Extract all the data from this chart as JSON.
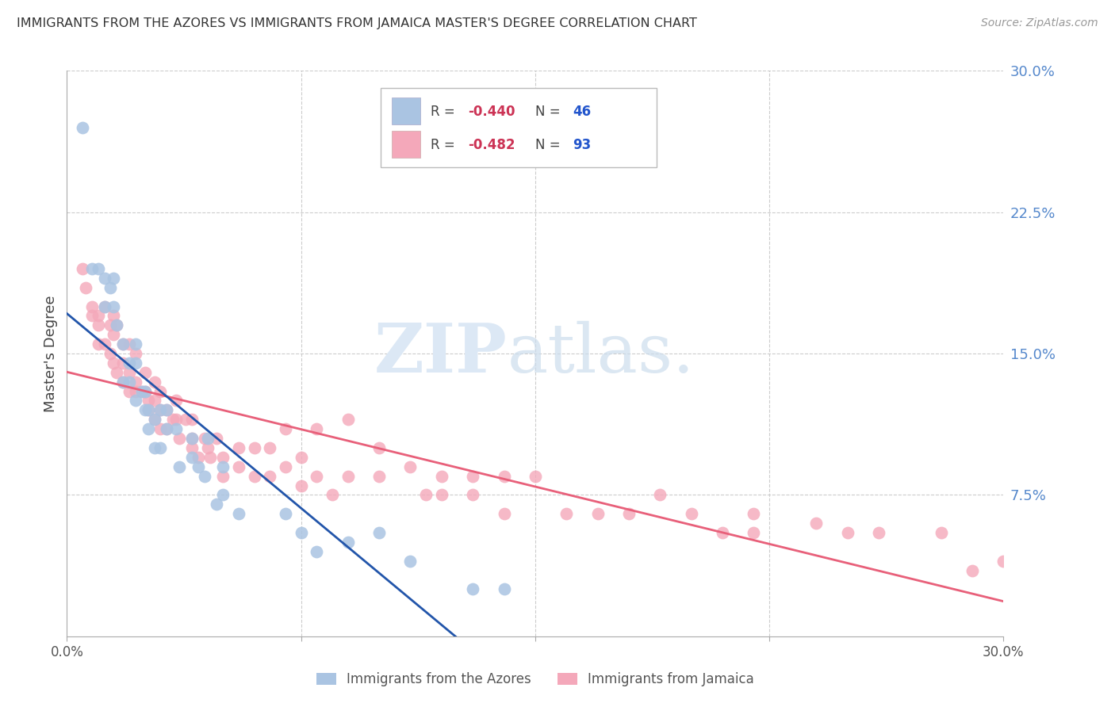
{
  "title": "IMMIGRANTS FROM THE AZORES VS IMMIGRANTS FROM JAMAICA MASTER'S DEGREE CORRELATION CHART",
  "source": "Source: ZipAtlas.com",
  "ylabel": "Master's Degree",
  "right_yticks": [
    0.0,
    0.075,
    0.15,
    0.225,
    0.3
  ],
  "right_yticklabels": [
    "",
    "7.5%",
    "15.0%",
    "22.5%",
    "30.0%"
  ],
  "xmin": 0.0,
  "xmax": 0.3,
  "ymin": 0.0,
  "ymax": 0.3,
  "color_azores": "#aac4e2",
  "color_jamaica": "#f4a8ba",
  "color_line_azores": "#2255aa",
  "color_line_jamaica": "#e8607a",
  "color_right_axis": "#5588cc",
  "color_legend_r": "#cc3355",
  "color_legend_n": "#2255cc",
  "azores_x": [
    0.005,
    0.008,
    0.01,
    0.012,
    0.012,
    0.014,
    0.015,
    0.015,
    0.016,
    0.018,
    0.018,
    0.02,
    0.02,
    0.022,
    0.022,
    0.022,
    0.024,
    0.025,
    0.025,
    0.026,
    0.026,
    0.028,
    0.028,
    0.03,
    0.03,
    0.032,
    0.032,
    0.035,
    0.036,
    0.04,
    0.04,
    0.042,
    0.044,
    0.045,
    0.048,
    0.05,
    0.05,
    0.055,
    0.07,
    0.075,
    0.08,
    0.09,
    0.1,
    0.11,
    0.13,
    0.14
  ],
  "azores_y": [
    0.27,
    0.195,
    0.195,
    0.19,
    0.175,
    0.185,
    0.19,
    0.175,
    0.165,
    0.155,
    0.135,
    0.145,
    0.135,
    0.155,
    0.145,
    0.125,
    0.13,
    0.13,
    0.12,
    0.12,
    0.11,
    0.115,
    0.1,
    0.12,
    0.1,
    0.12,
    0.11,
    0.11,
    0.09,
    0.105,
    0.095,
    0.09,
    0.085,
    0.105,
    0.07,
    0.09,
    0.075,
    0.065,
    0.065,
    0.055,
    0.045,
    0.05,
    0.055,
    0.04,
    0.025,
    0.025
  ],
  "jamaica_x": [
    0.005,
    0.006,
    0.008,
    0.008,
    0.01,
    0.01,
    0.01,
    0.012,
    0.012,
    0.014,
    0.014,
    0.015,
    0.015,
    0.015,
    0.016,
    0.016,
    0.018,
    0.018,
    0.018,
    0.02,
    0.02,
    0.02,
    0.022,
    0.022,
    0.022,
    0.024,
    0.025,
    0.025,
    0.026,
    0.026,
    0.028,
    0.028,
    0.028,
    0.03,
    0.03,
    0.03,
    0.032,
    0.032,
    0.034,
    0.035,
    0.035,
    0.036,
    0.038,
    0.04,
    0.04,
    0.04,
    0.042,
    0.044,
    0.045,
    0.046,
    0.048,
    0.05,
    0.05,
    0.055,
    0.055,
    0.06,
    0.06,
    0.065,
    0.065,
    0.07,
    0.07,
    0.075,
    0.075,
    0.08,
    0.08,
    0.085,
    0.09,
    0.09,
    0.1,
    0.1,
    0.11,
    0.115,
    0.12,
    0.12,
    0.13,
    0.13,
    0.14,
    0.14,
    0.15,
    0.16,
    0.17,
    0.18,
    0.19,
    0.2,
    0.21,
    0.22,
    0.22,
    0.24,
    0.25,
    0.26,
    0.28,
    0.29,
    0.3
  ],
  "jamaica_y": [
    0.195,
    0.185,
    0.175,
    0.17,
    0.17,
    0.165,
    0.155,
    0.175,
    0.155,
    0.165,
    0.15,
    0.17,
    0.16,
    0.145,
    0.165,
    0.14,
    0.155,
    0.145,
    0.135,
    0.155,
    0.14,
    0.13,
    0.15,
    0.135,
    0.13,
    0.13,
    0.14,
    0.13,
    0.125,
    0.12,
    0.135,
    0.125,
    0.115,
    0.13,
    0.12,
    0.11,
    0.12,
    0.11,
    0.115,
    0.125,
    0.115,
    0.105,
    0.115,
    0.115,
    0.105,
    0.1,
    0.095,
    0.105,
    0.1,
    0.095,
    0.105,
    0.095,
    0.085,
    0.1,
    0.09,
    0.1,
    0.085,
    0.1,
    0.085,
    0.11,
    0.09,
    0.095,
    0.08,
    0.11,
    0.085,
    0.075,
    0.115,
    0.085,
    0.1,
    0.085,
    0.09,
    0.075,
    0.085,
    0.075,
    0.085,
    0.075,
    0.085,
    0.065,
    0.085,
    0.065,
    0.065,
    0.065,
    0.075,
    0.065,
    0.055,
    0.065,
    0.055,
    0.06,
    0.055,
    0.055,
    0.055,
    0.035,
    0.04
  ]
}
